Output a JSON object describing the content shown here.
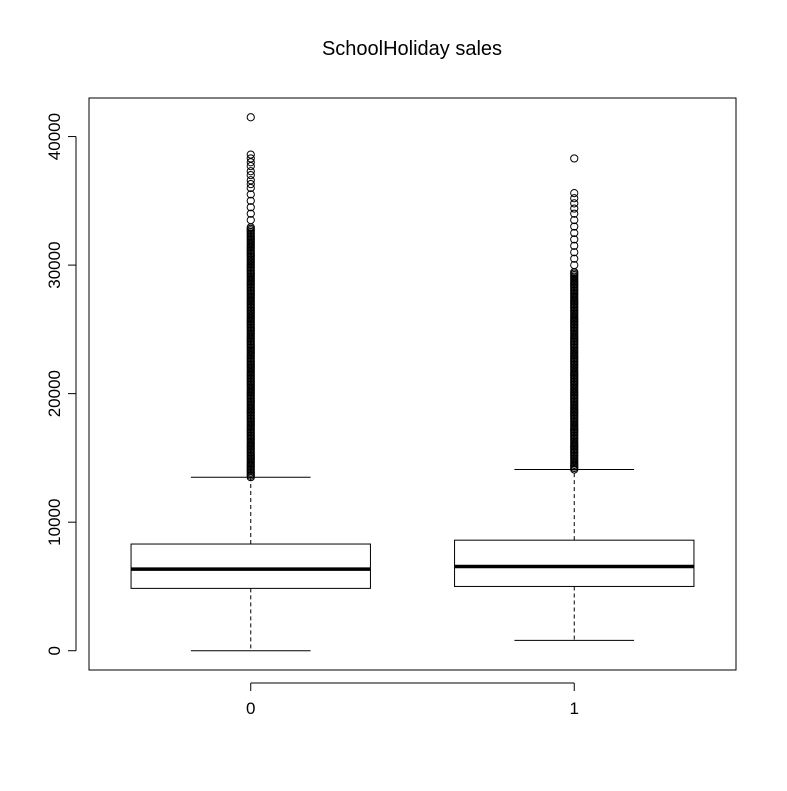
{
  "chart_data": {
    "type": "boxplot",
    "title": "SchoolHoliday sales",
    "xlabel": "",
    "ylabel": "",
    "categories": [
      "0",
      "1"
    ],
    "ylim": [
      -1500,
      43000
    ],
    "y_ticks": [
      0,
      10000,
      20000,
      30000,
      40000
    ],
    "y_tick_labels": [
      "0",
      "10000",
      "20000",
      "30000",
      "40000"
    ],
    "grid": false,
    "boxes": [
      {
        "category": "0",
        "whisker_low": 0,
        "q1": 4850,
        "median": 6350,
        "q3": 8300,
        "whisker_high": 13500,
        "outlier_range": [
          13500,
          33000
        ],
        "outliers": [
          33500,
          34000,
          34500,
          35000,
          35500,
          36000,
          36300,
          36600,
          37000,
          37300,
          37700,
          38000,
          38300,
          38600,
          41500
        ]
      },
      {
        "category": "1",
        "whisker_low": 800,
        "q1": 5000,
        "median": 6550,
        "q3": 8600,
        "whisker_high": 14100,
        "outlier_range": [
          14100,
          29500
        ],
        "outliers": [
          30000,
          30500,
          31000,
          31500,
          32000,
          32500,
          33000,
          33500,
          34000,
          34400,
          34800,
          35200,
          35600,
          38300
        ]
      }
    ]
  }
}
